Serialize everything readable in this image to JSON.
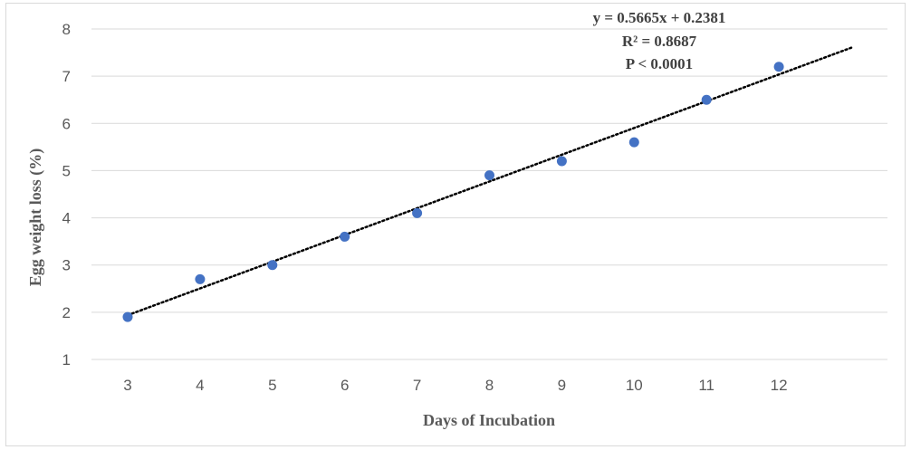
{
  "chart_data": {
    "type": "scatter",
    "title": "",
    "xlabel": "Days of Incubation",
    "ylabel": "Egg weight loss  (%)",
    "x": [
      3,
      4,
      5,
      6,
      7,
      8,
      9,
      10,
      11,
      12
    ],
    "y": [
      1.9,
      2.7,
      3.0,
      3.6,
      4.1,
      4.9,
      5.2,
      5.6,
      6.5,
      7.2
    ],
    "x_ticks": [
      "3",
      "4",
      "5",
      "6",
      "7",
      "8",
      "9",
      "10",
      "11",
      "12"
    ],
    "y_ticks": [
      "1",
      "2",
      "3",
      "4",
      "5",
      "6",
      "7",
      "8"
    ],
    "ylim": [
      1,
      8
    ],
    "grid": "horizontal",
    "trendline": {
      "type": "linear",
      "style": "dotted",
      "slope": 0.5665,
      "intercept": 0.2381,
      "x_range": [
        3,
        13
      ],
      "equation": "y = 0.5665x + 0.2381",
      "r_squared": "R² = 0.8687",
      "p_value": "P < 0.0001"
    },
    "colors": {
      "point": "#4472c4",
      "grid": "#d9d9d9",
      "trendline": "#000000"
    }
  }
}
